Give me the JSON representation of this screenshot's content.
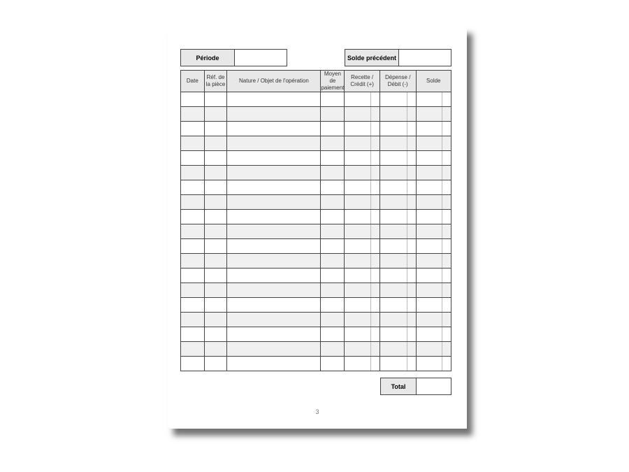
{
  "header": {
    "period_label": "Période",
    "period_value": "",
    "previous_balance_label": "Solde précédent",
    "previous_balance_value": ""
  },
  "table": {
    "columns": [
      "Date",
      "Réf. de la pièce",
      "Nature / Objet de l'opération",
      "Moyen de paiement",
      "Recette / Crédit (+)",
      "Dépense / Débit (-)",
      "Solde"
    ],
    "row_count": 19,
    "rows": []
  },
  "footer": {
    "total_label": "Total",
    "total_value": "",
    "page_number": "3"
  }
}
